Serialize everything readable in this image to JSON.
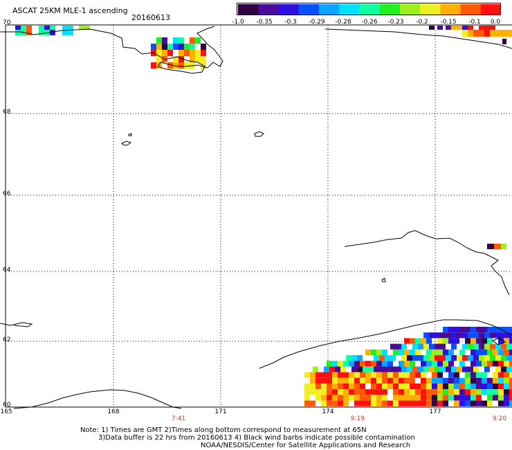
{
  "header": {
    "title": "ASCAT 25KM MLE-1 ascending",
    "date": "20160613"
  },
  "colorbar": {
    "colors": [
      "#300040",
      "#4a0a9a",
      "#2e10e0",
      "#0a50ff",
      "#0aa6ff",
      "#00e0ff",
      "#10ffa0",
      "#20f020",
      "#9ef01a",
      "#f0f020",
      "#ffb000",
      "#ff5a00",
      "#ff1010"
    ],
    "ticks": [
      "-1.0",
      "-0.35",
      "-0.3",
      "-0.29",
      "-0.28",
      "-0.26",
      "-0.23",
      "-0.2",
      "-0.15",
      "-0.1",
      "0.0"
    ]
  },
  "axes": {
    "lat_labels": [
      "70",
      "68",
      "66",
      "64",
      "62",
      "60"
    ],
    "lon_labels": [
      "165",
      "168",
      "171",
      "174",
      "177"
    ],
    "time_labels": [
      "7:41",
      "9:19",
      "9:20"
    ]
  },
  "notes": {
    "line1": "Note: 1) Times are GMT 2)Times along bottom correspond to measurement at 65N",
    "line2": "3)Data buffer is 22 hrs from 20160613 4) Black wind barbs indicate possible contamination",
    "line3": "NOAA/NESDIS/Center for Satellite Applications and Research"
  }
}
